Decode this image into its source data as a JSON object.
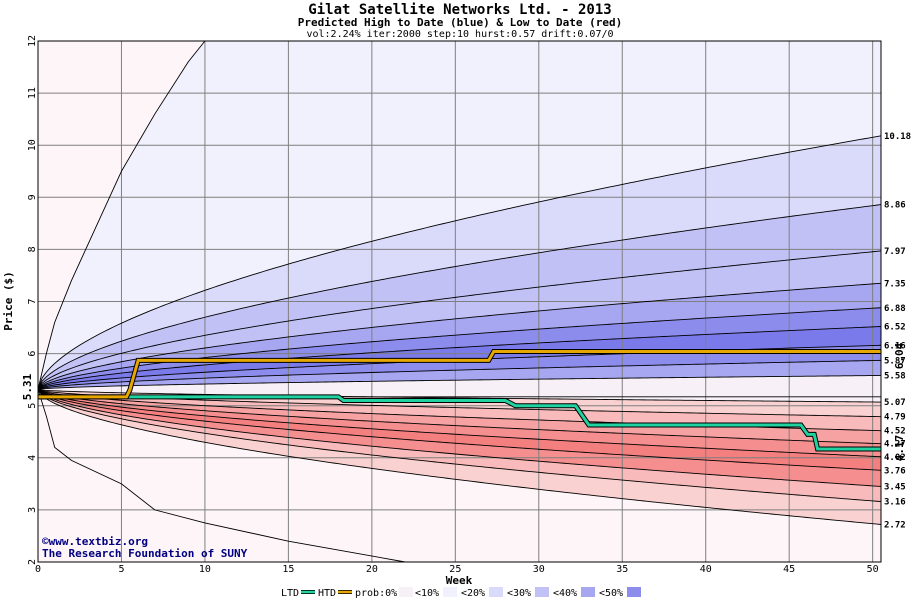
{
  "header": {
    "title": "Gilat Satellite Networks Ltd. - 2013",
    "subtitle": "Predicted High to Date (blue) &  Low to Date (red)",
    "params": "vol:2.24% iter:2000 step:10 hurst:0.57 drift:0.07/0"
  },
  "credits": {
    "line1": "©www.textbiz.org",
    "line2": "The Research Foundation of SUNY"
  },
  "legend": {
    "ltd": "LTD",
    "htd": "HTD",
    "prob": "prob:0%",
    "buckets": [
      "<10%",
      "<20%",
      "<30%",
      "<40%",
      "<50%"
    ]
  },
  "colors": {
    "plot_bg": "#fdf5f8",
    "grid": "#7f7f7f",
    "contour": "#000000",
    "ltd_line": "#20d2a0",
    "htd_line": "#e6a800",
    "htd_label": "#b07000",
    "ltd_label": "#109070",
    "start_label": "#0a7a4a",
    "credit": "#000080",
    "blue_bands": [
      "#f1f1fd",
      "#dadafb",
      "#c1c1f6",
      "#a6a6f1",
      "#8c8ced",
      "#7a7aea"
    ],
    "red_bands": [
      "#fbe6e6",
      "#fad1d1",
      "#f8baba",
      "#f6a2a2",
      "#f58e8e",
      "#f47f7f"
    ],
    "legend_swatches": [
      "#f7f1f7",
      "#f1f1fd",
      "#dadafb",
      "#c1c1f6",
      "#a6a6f1",
      "#8c8ced"
    ]
  },
  "chart_data": {
    "type": "area",
    "x_label": "Week",
    "y_label": "Price ($)",
    "x_range": [
      0,
      50.5
    ],
    "y_range": [
      2,
      12
    ],
    "x_ticks": [
      0,
      5,
      10,
      15,
      20,
      25,
      30,
      35,
      40,
      45,
      50
    ],
    "y_ticks": [
      2,
      3,
      4,
      5,
      6,
      7,
      8,
      9,
      10,
      11,
      12
    ],
    "grid": true,
    "start_price": "5.31",
    "high_to_date_final": "6.04",
    "low_to_date_final": "4.17",
    "upper_contour_endpoints": [
      10.18,
      8.86,
      7.97,
      7.35,
      6.88,
      6.52,
      6.16,
      5.87,
      5.58
    ],
    "lower_contour_endpoints": [
      5.07,
      4.79,
      4.52,
      4.27,
      4.02,
      3.76,
      3.45,
      3.16,
      2.72
    ],
    "end_labels": [
      "10.18",
      "8.86",
      "7.97",
      "7.35",
      "6.88",
      "6.52",
      "6.16",
      "5.87",
      "5.58",
      "5.07",
      "4.79",
      "4.52",
      "4.27",
      "4.02",
      "3.76",
      "3.45",
      "3.16",
      "2.72"
    ],
    "outer_envelope": {
      "upper": [
        [
          0,
          5.31
        ],
        [
          0.5,
          6.0
        ],
        [
          1,
          6.6
        ],
        [
          2,
          7.4
        ],
        [
          3,
          8.1
        ],
        [
          5,
          9.5
        ],
        [
          7,
          10.6
        ],
        [
          9,
          11.6
        ],
        [
          10,
          12.0
        ]
      ],
      "lower": [
        [
          0,
          5.31
        ],
        [
          0.5,
          4.8
        ],
        [
          1,
          4.2
        ],
        [
          2,
          3.95
        ],
        [
          5,
          3.5
        ],
        [
          7,
          3.0
        ],
        [
          10,
          2.75
        ],
        [
          15,
          2.4
        ],
        [
          22,
          2.0
        ]
      ]
    },
    "htd_series": [
      [
        0,
        5.17
      ],
      [
        5.3,
        5.17
      ],
      [
        5.5,
        5.3
      ],
      [
        6,
        5.87
      ],
      [
        27,
        5.87
      ],
      [
        27.3,
        6.04
      ],
      [
        50.5,
        6.04
      ]
    ],
    "ltd_series": [
      [
        0,
        5.17
      ],
      [
        18,
        5.17
      ],
      [
        18.3,
        5.1
      ],
      [
        28,
        5.1
      ],
      [
        28.6,
        5.0
      ],
      [
        32.2,
        5.0
      ],
      [
        33,
        4.63
      ],
      [
        45.7,
        4.63
      ],
      [
        46.1,
        4.45
      ],
      [
        46.5,
        4.45
      ],
      [
        46.7,
        4.17
      ],
      [
        50.5,
        4.17
      ]
    ]
  }
}
